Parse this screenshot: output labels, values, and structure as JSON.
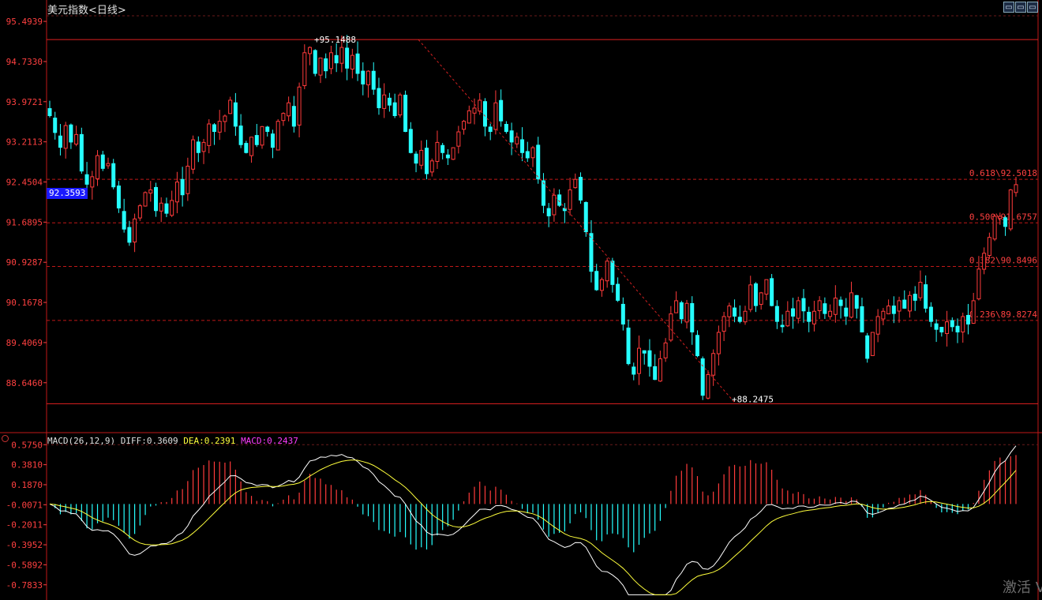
{
  "header": {
    "title": "美元指数",
    "period": "<日线>",
    "buttons": [
      "▭",
      "▭",
      "▭"
    ]
  },
  "watermark": "激活 V",
  "current_price_badge": "92.3593",
  "colors": {
    "up": "#ff3b3b",
    "down": "#26ffff",
    "axis_text": "#ff4040",
    "grid_dash": "#c01818",
    "diff_line": "#ffffff",
    "dea_line": "#ffff3c",
    "macd_label": "#ff3cff",
    "trend_line": "#d02020"
  },
  "chart_data": [
    {
      "type": "candlestick",
      "title": "美元指数<日线>",
      "y_ticks": [
        "95.4939",
        "94.7330",
        "93.9721",
        "93.2113",
        "92.4504",
        "91.6895",
        "90.9287",
        "90.1678",
        "89.4069",
        "88.6460"
      ],
      "ylim": [
        87.7,
        95.6
      ],
      "high_label": "95.1488",
      "low_label": "88.2475",
      "high_value": 95.1488,
      "low_value": 88.2475,
      "fib_levels": [
        {
          "label": "0.618\\92.5018",
          "value": 92.5018
        },
        {
          "label": "0.500\\91.6757",
          "value": 91.6757
        },
        {
          "label": "0.382\\90.8496",
          "value": 90.8496
        },
        {
          "label": "0.236\\89.8274",
          "value": 89.8274
        }
      ],
      "series_closes": [
        93.7,
        93.38,
        93.1,
        93.52,
        93.2,
        93.35,
        92.65,
        92.4,
        92.55,
        92.95,
        92.7,
        92.8,
        92.35,
        91.95,
        91.55,
        91.3,
        91.75,
        92.0,
        92.25,
        92.3,
        91.9,
        92.05,
        91.85,
        92.1,
        92.45,
        92.2,
        92.75,
        93.25,
        93.0,
        93.2,
        93.55,
        93.4,
        93.6,
        93.7,
        94.0,
        93.5,
        93.15,
        93.0,
        93.3,
        93.15,
        93.5,
        93.4,
        93.1,
        93.6,
        93.75,
        93.95,
        93.5,
        94.25,
        94.9,
        95.0,
        94.5,
        94.8,
        94.55,
        94.9,
        94.7,
        95.0,
        94.6,
        94.85,
        94.5,
        94.3,
        94.55,
        94.2,
        93.85,
        94.1,
        93.9,
        93.7,
        94.1,
        93.4,
        93.0,
        92.8,
        93.05,
        92.6,
        92.85,
        93.2,
        93.0,
        92.9,
        93.1,
        93.4,
        93.6,
        93.8,
        93.85,
        94.0,
        93.5,
        93.4,
        93.95,
        93.6,
        93.4,
        93.2,
        93.3,
        93.0,
        92.9,
        93.1,
        92.5,
        92.0,
        91.8,
        92.2,
        92.0,
        91.9,
        92.3,
        92.5,
        92.1,
        91.5,
        90.75,
        90.4,
        90.6,
        90.95,
        90.5,
        90.2,
        89.75,
        89.0,
        88.8,
        89.3,
        89.2,
        88.95,
        88.7,
        89.1,
        89.4,
        89.95,
        90.2,
        89.85,
        90.15,
        89.6,
        89.15,
        88.4,
        88.8,
        89.2,
        89.6,
        89.9,
        90.1,
        89.9,
        89.8,
        90.0,
        90.5,
        90.1,
        90.35,
        90.6,
        90.1,
        89.8,
        89.7,
        90.0,
        89.9,
        90.2,
        90.0,
        89.8,
        90.0,
        90.2,
        89.95,
        90.0,
        90.25,
        90.1,
        89.9,
        90.35,
        90.05,
        89.6,
        89.1,
        89.6,
        89.9,
        90.0,
        90.1,
        89.95,
        90.2,
        90.05,
        90.3,
        90.2,
        90.55,
        90.05,
        89.8,
        89.65,
        89.6,
        89.8,
        89.7,
        89.6,
        89.9,
        89.75,
        90.2,
        90.8,
        91.1,
        91.4,
        91.8,
        91.8,
        91.6,
        92.3,
        92.4
      ]
    },
    {
      "type": "line+bar",
      "legend": [
        "MACD(26,12,9)",
        "DIFF:0.3609",
        "DEA:0.2391",
        "MACD:0.2437"
      ],
      "y_ticks": [
        "0.5750",
        "0.3810",
        "0.1870",
        "-0.0071",
        "-0.2011",
        "-0.3952",
        "-0.5892",
        "-0.7833"
      ],
      "ylim": [
        -0.9,
        0.6
      ]
    }
  ]
}
